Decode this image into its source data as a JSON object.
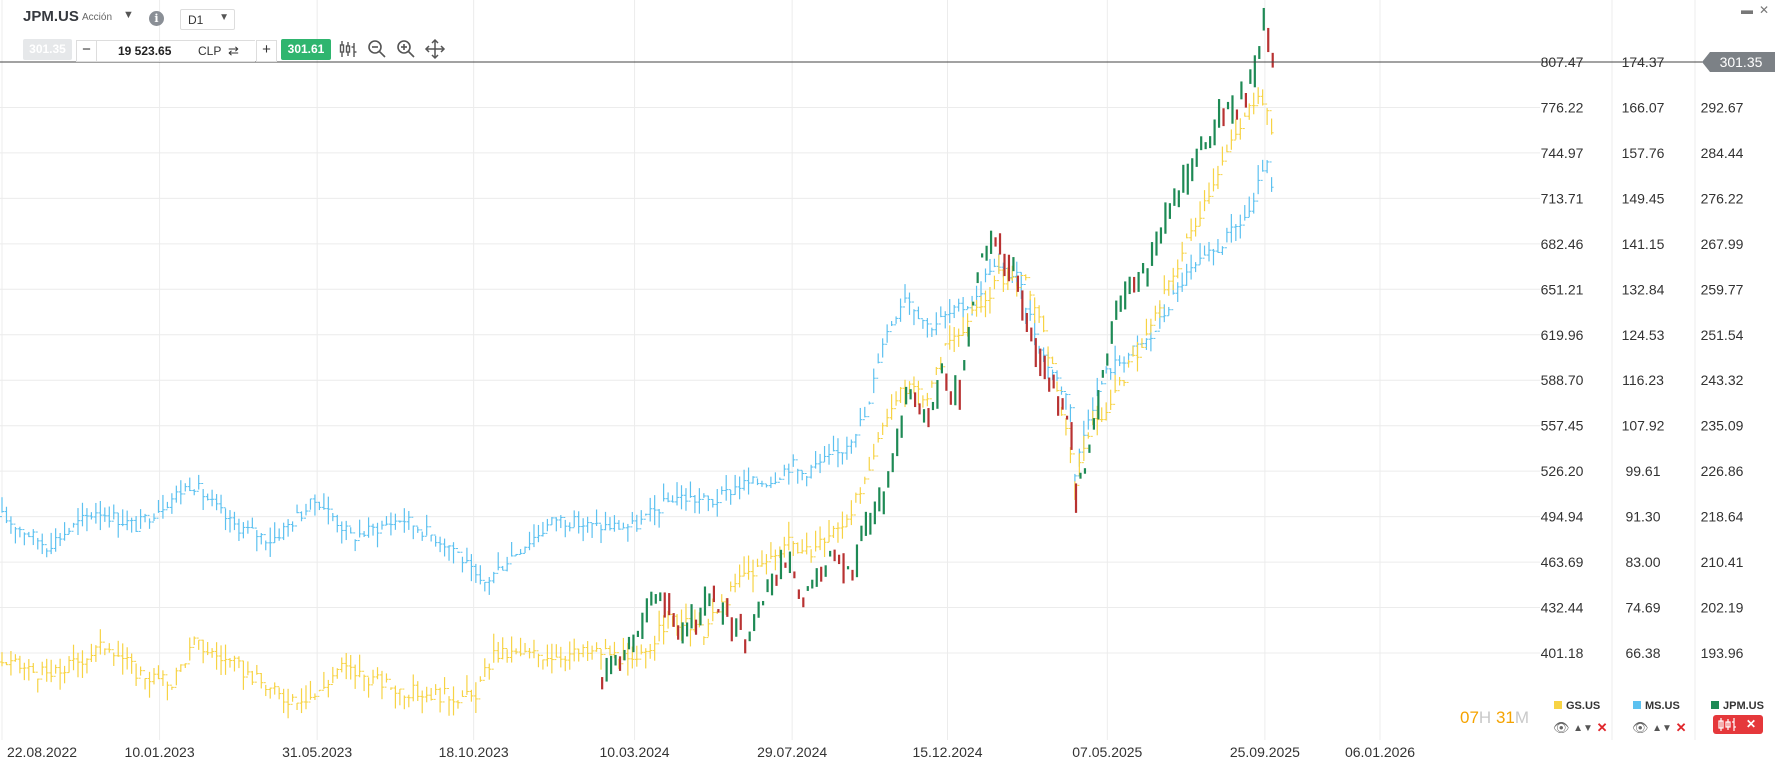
{
  "header": {
    "symbol": "JPM.US",
    "symbol_type": "Acción",
    "timeframe": "D1",
    "info_icon": "info-icon"
  },
  "order_bar": {
    "sell_price": "301.35",
    "quantity": "19 523.65",
    "currency": "CLP",
    "buy_price": "301.61",
    "minus_label": "−",
    "plus_label": "+"
  },
  "toolbar": {
    "icons": [
      "chart-type-icon",
      "zoom-out-icon",
      "zoom-in-icon",
      "move-icon"
    ]
  },
  "window_controls": {
    "minimize": "▬",
    "close": "✕"
  },
  "timer": {
    "hours": "07",
    "h": "H",
    "minutes": "31",
    "m": "M"
  },
  "price_tag": "301.35",
  "colors": {
    "gs": "#f7d344",
    "ms": "#5cc1f0",
    "jpm_up": "#1e8a55",
    "jpm_down": "#b83232",
    "buy": "#2fb56f",
    "close": "#e5383b",
    "grid": "#ececec",
    "current_line": "#444444"
  },
  "legend": [
    {
      "symbol": "GS.US",
      "color": "#f7d344"
    },
    {
      "symbol": "MS.US",
      "color": "#5cc1f0"
    },
    {
      "symbol": "JPM.US",
      "color": "#1e8a55"
    }
  ],
  "chart_data": {
    "type": "line",
    "x_tick_labels": [
      "22.08.2022",
      "10.01.2023",
      "31.05.2023",
      "18.10.2023",
      "10.03.2024",
      "29.07.2024",
      "15.12.2024",
      "07.05.2025",
      "25.09.2025",
      "06.01.2026"
    ],
    "x_ticks": [
      "2022-08-22",
      "2023-01-10",
      "2023-05-31",
      "2023-10-18",
      "2024-03-10",
      "2024-07-29",
      "2024-12-15",
      "2025-05-07",
      "2025-09-25",
      "2026-01-06"
    ],
    "y_axes": [
      {
        "series": "GS.US",
        "ticks": [
          "807.47",
          "776.22",
          "744.97",
          "713.71",
          "682.46",
          "651.21",
          "619.96",
          "588.70",
          "557.45",
          "526.20",
          "494.94",
          "463.69",
          "432.44",
          "401.18"
        ],
        "range": [
          401.18,
          807.47
        ]
      },
      {
        "series": "MS.US",
        "ticks": [
          "174.37",
          "166.07",
          "157.76",
          "149.45",
          "141.15",
          "132.84",
          "124.53",
          "116.23",
          "107.92",
          "99.61",
          "91.30",
          "83.00",
          "74.69",
          "66.38"
        ],
        "range": [
          66.38,
          174.37
        ]
      },
      {
        "series": "JPM.US",
        "ticks": [
          "301.35",
          "292.67",
          "284.44",
          "276.22",
          "267.99",
          "259.77",
          "251.54",
          "243.32",
          "235.09",
          "226.86",
          "218.64",
          "210.41",
          "202.19",
          "193.96"
        ],
        "range": [
          193.96,
          301.35
        ]
      }
    ],
    "series": [
      {
        "name": "MS.US",
        "dates": [
          "2022-08-22",
          "2022-10-01",
          "2022-11-15",
          "2022-12-20",
          "2023-01-10",
          "2023-02-08",
          "2023-03-15",
          "2023-04-20",
          "2023-05-31",
          "2023-07-01",
          "2023-08-15",
          "2023-10-01",
          "2023-10-25",
          "2023-11-20",
          "2023-12-31",
          "2024-01-31",
          "2024-03-10",
          "2024-04-15",
          "2024-05-20",
          "2024-06-10",
          "2024-07-10",
          "2024-07-29",
          "2024-08-05",
          "2024-09-10",
          "2024-10-05",
          "2024-10-16",
          "2024-11-07",
          "2024-11-28",
          "2024-12-15",
          "2025-01-10",
          "2025-01-22",
          "2025-02-15",
          "2025-03-10",
          "2025-04-04",
          "2025-04-08",
          "2025-04-20",
          "2025-05-07",
          "2025-06-15",
          "2025-07-15",
          "2025-08-15",
          "2025-09-01",
          "2025-09-15",
          "2025-09-25",
          "2025-10-02"
        ],
        "values": [
          91.3,
          86.0,
          92.5,
          89.5,
          93.0,
          97.5,
          90.0,
          87.0,
          94.5,
          87.5,
          91.0,
          85.5,
          78.5,
          84.0,
          91.0,
          89.5,
          89.5,
          95.0,
          94.0,
          97.0,
          98.0,
          101.0,
          99.0,
          103.0,
          110.5,
          122.5,
          132.0,
          126.0,
          128.0,
          131.0,
          137.0,
          135.0,
          121.0,
          112.0,
          99.0,
          110.0,
          118.0,
          124.0,
          135.0,
          140.5,
          144.5,
          148.0,
          157.0,
          150.0
        ]
      },
      {
        "name": "GS.US",
        "dates": [
          "2022-08-22",
          "2022-10-05",
          "2022-11-25",
          "2022-12-20",
          "2023-01-20",
          "2023-02-10",
          "2023-03-20",
          "2023-04-30",
          "2023-05-31",
          "2023-06-20",
          "2023-08-15",
          "2023-10-18",
          "2023-11-05",
          "2023-12-31",
          "2024-02-15",
          "2024-03-10",
          "2024-04-10",
          "2024-05-10",
          "2024-06-15",
          "2024-07-01",
          "2024-07-29",
          "2024-08-05",
          "2024-09-10",
          "2024-10-05",
          "2024-10-20",
          "2024-11-10",
          "2024-11-28",
          "2024-12-15",
          "2025-01-15",
          "2025-01-30",
          "2025-02-25",
          "2025-03-20",
          "2025-04-08",
          "2025-04-20",
          "2025-05-07",
          "2025-06-15",
          "2025-07-15",
          "2025-08-15",
          "2025-09-05",
          "2025-09-20",
          "2025-10-02"
        ],
        "values": [
          395.0,
          385.0,
          408.0,
          388.0,
          380.0,
          408.0,
          392.0,
          370.0,
          372.0,
          392.0,
          375.0,
          370.0,
          400.0,
          400.0,
          402.0,
          392.0,
          425.0,
          415.0,
          455.0,
          460.0,
          482.0,
          466.0,
          488.0,
          520.0,
          565.0,
          585.0,
          578.0,
          615.0,
          640.0,
          660.0,
          655.0,
          595.0,
          520.0,
          555.0,
          570.0,
          625.0,
          680.0,
          735.0,
          765.0,
          790.0,
          760.0
        ]
      },
      {
        "name": "JPM.US",
        "dates": [
          "2024-02-10",
          "2024-03-05",
          "2024-04-05",
          "2024-04-20",
          "2024-05-15",
          "2024-06-05",
          "2024-06-20",
          "2024-07-10",
          "2024-07-29",
          "2024-08-05",
          "2024-09-01",
          "2024-09-20",
          "2024-10-05",
          "2024-10-20",
          "2024-11-10",
          "2024-11-28",
          "2024-12-10",
          "2024-12-25",
          "2025-01-10",
          "2025-01-22",
          "2025-02-15",
          "2025-03-10",
          "2025-04-04",
          "2025-04-08",
          "2025-04-20",
          "2025-05-07",
          "2025-05-20",
          "2025-06-15",
          "2025-07-15",
          "2025-08-15",
          "2025-09-01",
          "2025-09-15",
          "2025-09-25",
          "2025-10-02"
        ],
        "values": [
          190.0,
          196.0,
          205.0,
          197.0,
          203.0,
          200.0,
          196.0,
          207.0,
          211.0,
          202.0,
          211.0,
          208.0,
          219.0,
          222.0,
          242.0,
          236.0,
          244.0,
          240.0,
          262.0,
          270.0,
          262.0,
          245.0,
          237.0,
          221.0,
          231.0,
          248.0,
          258.0,
          265.0,
          280.0,
          291.0,
          294.0,
          298.0,
          309.0,
          302.0
        ]
      }
    ],
    "current_price": 301.35
  }
}
